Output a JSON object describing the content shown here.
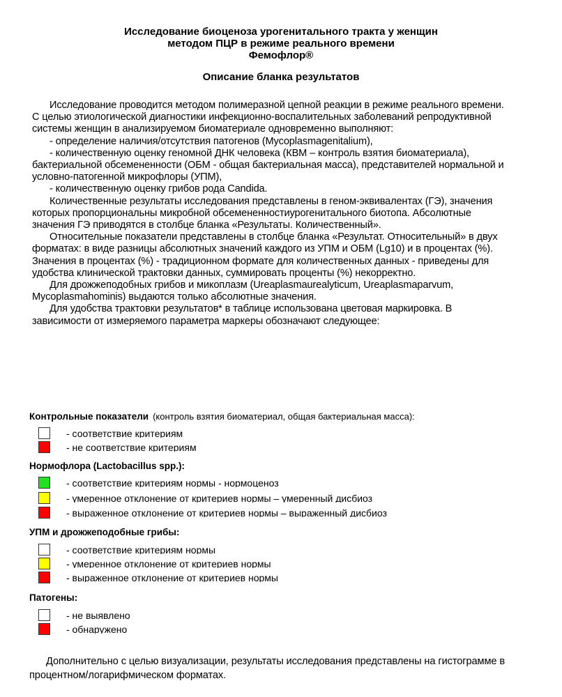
{
  "header": {
    "title_lines": [
      "Исследование биоценоза урогенитального тракта у женщин",
      "методом ПЦР в режиме реального времени",
      "Фемофлор®"
    ],
    "subtitle": "Описание бланка результатов"
  },
  "body_lines": [
    {
      "text": "Исследование проводится методом полимеразной цепной реакции в режиме реального времени.",
      "indent": true
    },
    {
      "text": "С целью этиологической диагностики инфекционно-воспалительных заболеваний репродуктивной",
      "indent": false
    },
    {
      "text": "системы женщин в анализируемом биоматериале одновременно выполняют:",
      "indent": false
    },
    {
      "text": "- определение наличия/отсутствия патогенов (Mycoplasmagenitalium),",
      "indent": true
    },
    {
      "text": "- количественную оценку геномной ДНК человека (КВМ – контроль взятия биоматериала),",
      "indent": true
    },
    {
      "text": "бактериальной обсемененности (ОБМ - общая бактериальная масса), представителей нормальной и",
      "indent": false
    },
    {
      "text": "условно-патогенной микрофлоры (УПМ),",
      "indent": false
    },
    {
      "text": "- количественную оценку грибов рода Candida.",
      "indent": true
    },
    {
      "text": "Количественные результаты исследования представлены в геном-эквивалентах (ГЭ), значения",
      "indent": true
    },
    {
      "text": "которых пропорциональны микробной обсемененностиурогенитального биотопа. Абсолютные",
      "indent": false
    },
    {
      "text": "значения ГЭ приводятся в столбце бланка «Результаты. Количественный».",
      "indent": false
    },
    {
      "text": "Относительные показатели представлены в столбце бланка «Результат. Относительный» в двух",
      "indent": true
    },
    {
      "text": "форматах: в виде разницы абсолютных значений каждого из УПМ и ОБМ (Lg10) и в процентах (%).",
      "indent": false
    },
    {
      "text": "Значения в процентах (%) - традиционном формате для количественных данных - приведены для",
      "indent": false
    },
    {
      "text": "удобства клинической трактовки данных, суммировать проценты (%) некорректно.",
      "indent": false
    },
    {
      "text": "Для дрожжеподобных грибов и микоплазм (Ureaplasmaurealyticum, Ureaplasmaparvum,",
      "indent": true
    },
    {
      "text": "Mycoplasmahominis) выдаются только абсолютные значения.",
      "indent": false
    },
    {
      "text": "Для удобства трактовки результатов* в таблице использована цветовая маркировка. В",
      "indent": true
    },
    {
      "text": "зависимости от измеряемого параметра маркеры обозначают следующее:",
      "indent": false
    }
  ],
  "legend": {
    "control": {
      "title": "Контрольные показатели",
      "note": "(контроль взятия биоматериал, общая бактериальная масса):",
      "items": [
        {
          "color": "#ffffff",
          "text": "-  соответствие критериям"
        },
        {
          "color": "#ff0000",
          "text": "-  не соответствие критериям"
        }
      ]
    },
    "normoflora": {
      "title": "Нормофлора (Lactobacillus spp.):",
      "items": [
        {
          "color": "#22e022",
          "text": "-  соответствие критериям нормы - нормоценоз"
        },
        {
          "color": "#ffff00",
          "text": "-  умеренное отклонение от критериев нормы – умеренный дисбиоз"
        },
        {
          "color": "#ff0000",
          "text": "-  выраженное отклонение от критериев нормы – выраженный дисбиоз"
        }
      ]
    },
    "upm": {
      "title": "УПМ и дрожжеподобные грибы:",
      "items": [
        {
          "color": "#ffffff",
          "text": "-  соответствие критериям нормы"
        },
        {
          "color": "#ffff00",
          "text": "-  умеренное отклонение от критериев нормы"
        },
        {
          "color": "#ff0000",
          "text": "-  выраженное отклонение от критериев нормы"
        }
      ]
    },
    "pathogens": {
      "title": "Патогены:",
      "items": [
        {
          "color": "#ffffff",
          "text": "-  не выявлено"
        },
        {
          "color": "#ff0000",
          "text": "-  обнаружено"
        }
      ]
    }
  },
  "footer_lines": [
    "Дополнительно с целью визуализации, результаты исследования представлены на гистограмме в",
    "процентном/логарифмическом форматах."
  ]
}
